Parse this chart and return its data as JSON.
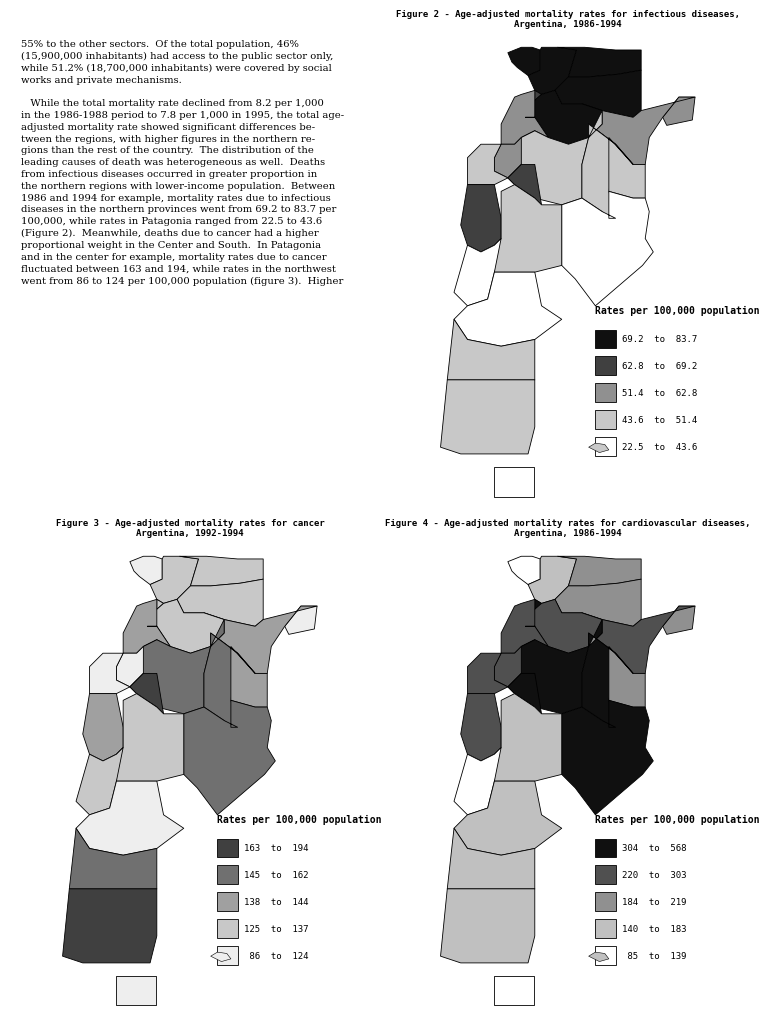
{
  "title_fig2": "Figure 2 - Age-adjusted mortality rates for infectious diseases,\nArgentina, 1986-1994",
  "title_fig3": "Figure 3 - Age-adjusted mortality rates for cancer\nArgentina, 1992-1994",
  "title_fig4": "Figure 4 - Age-adjusted mortality rates for cardiovascular diseases,\nArgentina, 1986-1994",
  "legend_title": "Rates per 100,000 population",
  "fig2_legend": [
    {
      "range": "69.2  to  83.7",
      "color": "#101010"
    },
    {
      "range": "62.8  to  69.2",
      "color": "#404040"
    },
    {
      "range": "51.4  to  62.8",
      "color": "#909090"
    },
    {
      "range": "43.6  to  51.4",
      "color": "#c8c8c8"
    },
    {
      "range": "22.5  to  43.6",
      "color": "#ffffff"
    }
  ],
  "fig3_legend": [
    {
      "range": "163  to  194",
      "color": "#404040"
    },
    {
      "range": "145  to  162",
      "color": "#707070"
    },
    {
      "range": "138  to  144",
      "color": "#a0a0a0"
    },
    {
      "range": "125  to  137",
      "color": "#c8c8c8"
    },
    {
      "range": " 86  to  124",
      "color": "#eeeeee"
    }
  ],
  "fig4_legend": [
    {
      "range": "304  to  568",
      "color": "#101010"
    },
    {
      "range": "220  to  303",
      "color": "#505050"
    },
    {
      "range": "184  to  219",
      "color": "#909090"
    },
    {
      "range": "140  to  183",
      "color": "#c0c0c0"
    },
    {
      "range": " 85  to  139",
      "color": "#ffffff"
    }
  ],
  "background_color": "#ffffff",
  "title_fontsize": 6.5,
  "legend_fontsize": 6.5,
  "legend_title_fontsize": 7.0,
  "text_fontsize": 7.2
}
